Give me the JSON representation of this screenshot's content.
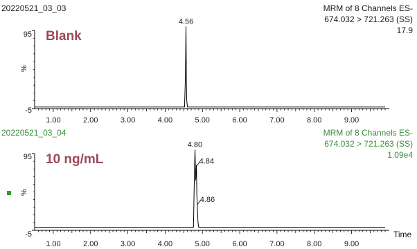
{
  "colors": {
    "panel1_header": "#1a1a1a",
    "panel2_header": "#3a8a3a",
    "sample_label": "#9b4a5a",
    "trace": "#000000",
    "legend_marker": "#2e9a2e"
  },
  "x_axis_label": "Time",
  "chart_data": [
    {
      "type": "line",
      "sample_id": "20220521_03_03",
      "method_line1": "MRM of 8 Channels ES-",
      "method_line2": "674.032 > 721.263 (SS)",
      "intensity": "17.9",
      "sample_label": "Blank",
      "y_label": "%",
      "ylim": [
        -5,
        95
      ],
      "y_ticks": [
        "95",
        "-5"
      ],
      "xlim": [
        0.5,
        9.9
      ],
      "x_ticks": [
        "1.00",
        "2.00",
        "3.00",
        "4.00",
        "5.00",
        "6.00",
        "7.00",
        "8.00",
        "9.00"
      ],
      "peaks": [
        {
          "rt": 4.56,
          "label": "4.56",
          "height": 100
        }
      ],
      "baseline": -3,
      "series": [
        {
          "x": [
            0.5,
            4.52,
            4.54,
            4.55,
            4.56,
            4.57,
            4.58,
            4.6,
            9.9
          ],
          "y": [
            -3,
            -3,
            30,
            58,
            100,
            30,
            5,
            -3,
            -3
          ]
        }
      ]
    },
    {
      "type": "line",
      "sample_id": "20220521_03_04",
      "method_line1": "MRM of 8 Channels ES-",
      "method_line2": "674.032 > 721.263 (SS)",
      "intensity": "1.09e4",
      "sample_label": "10 ng/mL",
      "y_label": "%",
      "ylim": [
        -5,
        95
      ],
      "y_ticks": [
        "95",
        "-5"
      ],
      "xlim": [
        0.5,
        9.9
      ],
      "x_ticks": [
        "1.00",
        "2.00",
        "3.00",
        "4.00",
        "5.00",
        "6.00",
        "7.00",
        "8.00",
        "9.00"
      ],
      "peaks": [
        {
          "rt": 4.8,
          "label": "4.80",
          "height": 100
        },
        {
          "rt": 4.84,
          "label": "4.84",
          "height": 80
        },
        {
          "rt": 4.86,
          "label": "4.86",
          "height": 30
        }
      ],
      "baseline": -1,
      "series": [
        {
          "x": [
            0.5,
            4.76,
            4.78,
            4.8,
            4.82,
            4.84,
            4.85,
            4.86,
            4.88,
            4.9,
            9.9
          ],
          "y": [
            -1,
            -1,
            55,
            100,
            60,
            80,
            40,
            30,
            6,
            -1,
            -1
          ]
        }
      ]
    }
  ]
}
